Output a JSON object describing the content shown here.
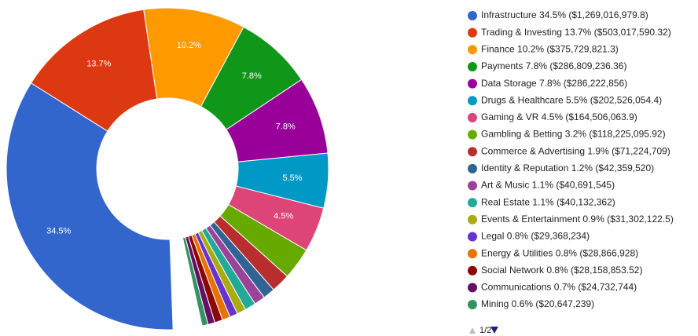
{
  "chart_data": {
    "type": "donut",
    "categories": [
      "Infrastructure 34.5% ($1,269,016,979.8)",
      "Trading & Investing 13.7% ($503,017,590.32)",
      "Finance 10.2% ($375,729,821.3)",
      "Payments 7.8% ($286,809,236.36)",
      "Data Storage 7.8% ($286,222,856)",
      "Drugs & Healthcare 5.5% ($202,526,054.4)",
      "Gaming & VR 4.5% ($164,506,063.9)",
      "Gambling & Betting 3.2% ($118,225,095.92)",
      "Commerce & Advertising 1.9% ($71,224,709)",
      "Identity & Reputation 1.2% ($42,359,520)",
      "Art & Music 1.1% ($40,691,545)",
      "Real Estate 1.1% ($40,132,362)",
      "Events & Entertainment 0.9% ($31,302,122.5)",
      "Legal 0.8% ($29,368,234)",
      "Energy & Utilities 0.8% ($28,866,928)",
      "Social Network 0.8% ($28,158,853.52)",
      "Communications 0.7% ($24,732,744)",
      "Mining 0.6% ($20,647,239)"
    ],
    "values": [
      34.5,
      13.7,
      10.2,
      7.8,
      7.8,
      5.5,
      4.5,
      3.2,
      1.9,
      1.2,
      1.1,
      1.1,
      0.9,
      0.8,
      0.8,
      0.8,
      0.7,
      0.6
    ],
    "value_labels": [
      "34.5%",
      "13.7%",
      "10.2%",
      "7.8%",
      "7.8%",
      "5.5%",
      "4.5%",
      null,
      null,
      null,
      null,
      null,
      null,
      null,
      null,
      null,
      null,
      null
    ],
    "colors": [
      "#3366cc",
      "#dc3912",
      "#ff9900",
      "#109618",
      "#990099",
      "#0099c6",
      "#dd4477",
      "#66aa00",
      "#b82e2e",
      "#316395",
      "#994499",
      "#22aa99",
      "#aaaa11",
      "#6633cc",
      "#e67300",
      "#8b0707",
      "#651067",
      "#329262"
    ],
    "legend_page": "1/2"
  }
}
